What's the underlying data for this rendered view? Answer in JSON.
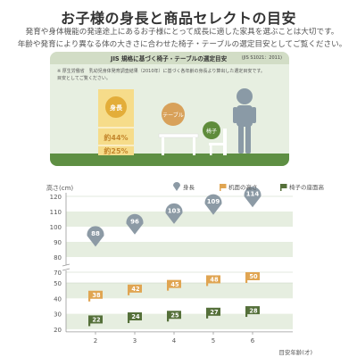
{
  "header": {
    "title": "お子様の身長と商品セレクトの目安",
    "intro_line1": "発育や身体機能の発達途上にあるお子様にとって成長に適した家具を選ぶことは大切です。",
    "intro_line2": "年齢や発育により異なる体の大きさに合わせた椅子・テーブルの選定目安としてご覧ください。"
  },
  "illustration": {
    "panel_title": "JIS 規格に基づく椅子・テーブルの選定目安",
    "panel_standard": "(JIS S1021：2011)",
    "note_line1": "※ 厚生労働省　乳幼児身体発育調査結果（2010年）に基づく各年齢の身長より算出した選定目安です。",
    "note_line2": "目安としてご覧ください。",
    "height_label": "身長",
    "table_label": "テーブル",
    "chair_label": "椅子",
    "table_ratio": "約44%",
    "chair_ratio": "約25%",
    "colors": {
      "panel": "#e7efe1",
      "grass": "#5e8f43",
      "bar": "#f6dc8a",
      "badge": "#e3ad39",
      "table": "#d8a15a",
      "chair": "#5f8c3b",
      "child": "#8a9aa6"
    }
  },
  "chart_data": {
    "type": "scatter",
    "xlabel": "目安年齢(才)",
    "ylabel": "高さ(cm)",
    "x": [
      2,
      3,
      4,
      5,
      6
    ],
    "xlim": [
      1,
      7
    ],
    "ylim": [
      20,
      120
    ],
    "broken_axis": true,
    "yticks_upper": [
      70,
      80,
      90,
      100,
      110,
      120
    ],
    "yticks_lower": [
      20,
      30,
      40,
      50
    ],
    "grid": "horizontal bands",
    "legend_position": "top-right",
    "series": [
      {
        "name": "身長",
        "values": [
          88,
          96,
          103,
          109,
          114
        ],
        "color": "#8c9aa5",
        "marker": "pin"
      },
      {
        "name": "机面の高さ",
        "values": [
          38,
          42,
          45,
          48,
          50
        ],
        "color": "#e0a552",
        "marker": "flag"
      },
      {
        "name": "椅子の座面高",
        "values": [
          22,
          24,
          25,
          27,
          28
        ],
        "color": "#55703a",
        "marker": "flag"
      }
    ]
  }
}
